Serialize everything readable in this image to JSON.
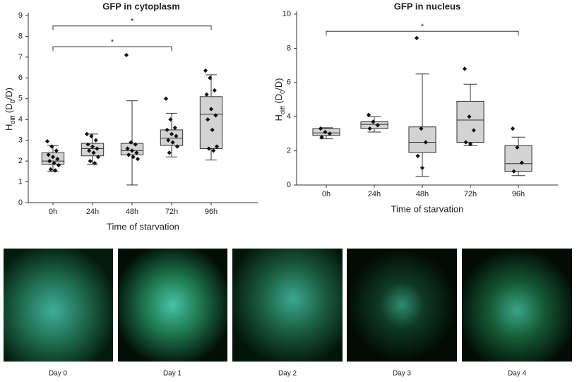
{
  "chart_data": [
    {
      "type": "box",
      "title": "GFP in cytoplasm",
      "xlabel": "Time of starvation",
      "ylabel": [
        {
          "text": "H"
        },
        {
          "text": "diff",
          "sub": true
        },
        {
          "text": " (D"
        },
        {
          "text": "0",
          "sub": true
        },
        {
          "text": "/D)"
        }
      ],
      "categories": [
        "0h",
        "24h",
        "48h",
        "72h",
        "96h"
      ],
      "boxes": [
        {
          "min": 1.5,
          "q1": 1.85,
          "median": 2.0,
          "q3": 2.4,
          "max": 2.75,
          "points": [
            2.95,
            2.7,
            2.5,
            2.3,
            2.2,
            2.1,
            2.0,
            1.9,
            1.8,
            1.6,
            1.55
          ]
        },
        {
          "min": 1.85,
          "q1": 2.25,
          "median": 2.6,
          "q3": 2.85,
          "max": 3.3,
          "points": [
            3.3,
            3.2,
            3.0,
            2.8,
            2.7,
            2.6,
            2.5,
            2.4,
            2.2,
            2.0,
            1.9
          ]
        },
        {
          "min": 0.85,
          "q1": 2.3,
          "median": 2.5,
          "q3": 2.85,
          "max": 4.9,
          "points": [
            7.1,
            2.9,
            2.8,
            2.6,
            2.5,
            2.4,
            2.3,
            2.2,
            2.1
          ]
        },
        {
          "min": 2.2,
          "q1": 2.75,
          "median": 3.1,
          "q3": 3.5,
          "max": 4.3,
          "points": [
            5.0,
            4.0,
            3.6,
            3.5,
            3.3,
            3.2,
            3.0,
            2.9,
            2.7,
            2.4
          ]
        },
        {
          "min": 2.05,
          "q1": 2.6,
          "median": 4.25,
          "q3": 5.1,
          "max": 6.15,
          "points": [
            6.35,
            6.0,
            5.4,
            5.2,
            4.5,
            4.2,
            4.0,
            3.5,
            2.7,
            2.6,
            2.5
          ]
        }
      ],
      "ylim": [
        0,
        9
      ],
      "yticks": [
        0,
        1,
        2,
        3,
        4,
        5,
        6,
        7,
        8,
        9
      ],
      "color": "#d3d3d3",
      "annotations": [
        {
          "label": "*",
          "between": [
            0,
            4
          ],
          "y": 8.5
        },
        {
          "label": "*",
          "between": [
            0,
            3
          ],
          "y": 7.5
        }
      ]
    },
    {
      "type": "box",
      "title": "GFP in nucleus",
      "xlabel": "Time of starvation",
      "ylabel": [
        {
          "text": "H"
        },
        {
          "text": "diff",
          "sub": true
        },
        {
          "text": " (D"
        },
        {
          "text": "0",
          "sub": true
        },
        {
          "text": "/D)"
        }
      ],
      "categories": [
        "0h",
        "24h",
        "48h",
        "72h",
        "96h"
      ],
      "boxes": [
        {
          "min": 2.7,
          "q1": 2.9,
          "median": 3.05,
          "q3": 3.3,
          "max": 3.35,
          "points": [
            3.3,
            3.1,
            3.0,
            2.8
          ]
        },
        {
          "min": 3.1,
          "q1": 3.3,
          "median": 3.55,
          "q3": 3.7,
          "max": 4.0,
          "points": [
            4.1,
            3.7,
            3.5,
            3.3
          ]
        },
        {
          "min": 0.5,
          "q1": 1.9,
          "median": 2.5,
          "q3": 3.4,
          "max": 6.5,
          "points": [
            8.6,
            3.3,
            2.5,
            1.7,
            1.0
          ]
        },
        {
          "min": 2.3,
          "q1": 2.5,
          "median": 3.8,
          "q3": 4.9,
          "max": 5.9,
          "points": [
            6.8,
            4.0,
            3.2,
            2.5,
            2.4
          ]
        },
        {
          "min": 0.55,
          "q1": 0.8,
          "median": 1.25,
          "q3": 2.3,
          "max": 2.8,
          "points": [
            3.3,
            2.2,
            1.3,
            0.8
          ]
        }
      ],
      "ylim": [
        0,
        10
      ],
      "yticks": [
        0,
        2,
        4,
        6,
        8,
        10
      ],
      "color": "#d3d3d3",
      "annotations": [
        {
          "label": "*",
          "between": [
            0,
            4
          ],
          "y": 9.0
        }
      ]
    }
  ],
  "panels": [
    {
      "label": "Day 0"
    },
    {
      "label": "Day 1"
    },
    {
      "label": "Day 2"
    },
    {
      "label": "Day 3"
    },
    {
      "label": "Day 4"
    }
  ]
}
